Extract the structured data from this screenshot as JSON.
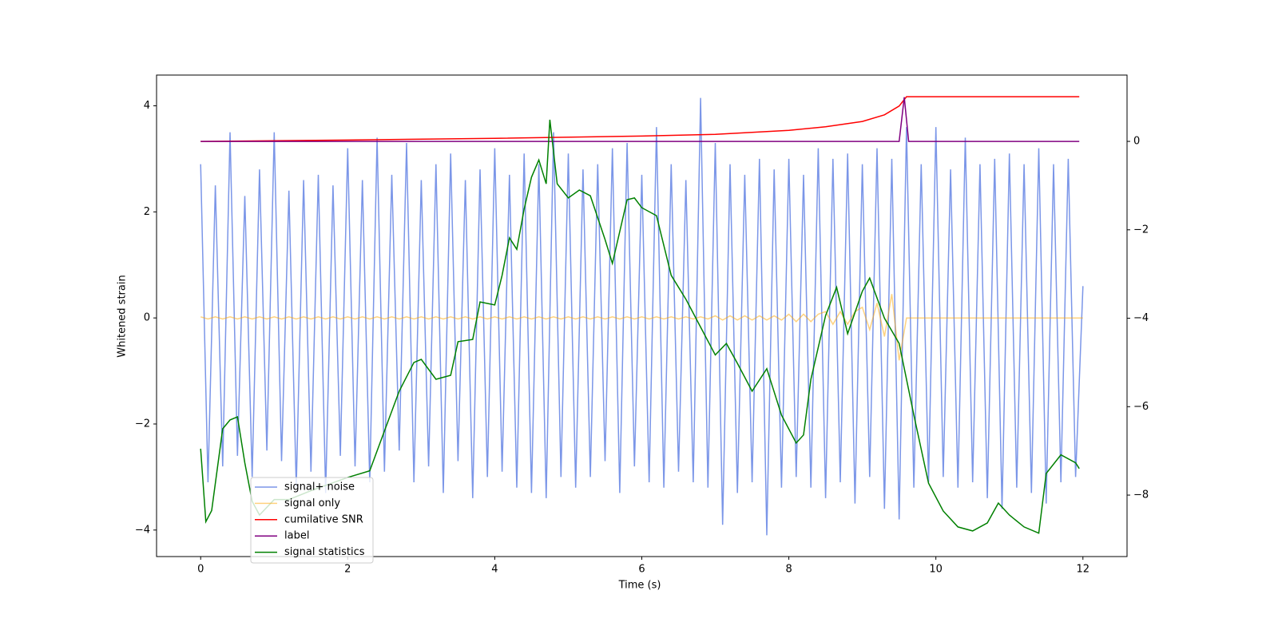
{
  "chart_data": {
    "type": "line",
    "xlabel": "Time (s)",
    "ylabel": "Whitened strain",
    "xlim": [
      -0.6,
      12.6
    ],
    "xticks": [
      0,
      2,
      4,
      6,
      8,
      10,
      12
    ],
    "ylim": [
      -4.5,
      4.58
    ],
    "yticks": [
      {
        "value": -4,
        "label": "−4"
      },
      {
        "value": -2,
        "label": "−2"
      },
      0,
      2,
      4
    ],
    "y2lim": [
      -9.39,
      1.5
    ],
    "y2ticks": [
      {
        "value": -8,
        "label": "−8"
      },
      {
        "value": -6,
        "label": "−6"
      },
      {
        "value": -4,
        "label": "−4"
      },
      {
        "value": -2,
        "label": "−2"
      },
      0
    ],
    "x": [
      0,
      0.1,
      0.2,
      0.3,
      0.4,
      0.5,
      0.6,
      0.7,
      0.8,
      0.9,
      1.0,
      1.1,
      1.2,
      1.3,
      1.4,
      1.5,
      1.6,
      1.7,
      1.8,
      1.9,
      2.0,
      2.1,
      2.2,
      2.3,
      2.4,
      2.5,
      2.6,
      2.7,
      2.8,
      2.9,
      3.0,
      3.1,
      3.2,
      3.3,
      3.4,
      3.5,
      3.6,
      3.7,
      3.8,
      3.9,
      4.0,
      4.1,
      4.2,
      4.3,
      4.4,
      4.5,
      4.6,
      4.7,
      4.8,
      4.9,
      5.0,
      5.1,
      5.2,
      5.3,
      5.4,
      5.5,
      5.6,
      5.7,
      5.8,
      5.9,
      6.0,
      6.1,
      6.2,
      6.3,
      6.4,
      6.5,
      6.6,
      6.7,
      6.8,
      6.9,
      7.0,
      7.1,
      7.2,
      7.3,
      7.4,
      7.5,
      7.6,
      7.7,
      7.8,
      7.9,
      8.0,
      8.1,
      8.2,
      8.3,
      8.4,
      8.5,
      8.6,
      8.7,
      8.8,
      8.9,
      9.0,
      9.1,
      9.2,
      9.3,
      9.4,
      9.5,
      9.6,
      9.7,
      9.8,
      9.9,
      10.0,
      10.1,
      10.2,
      10.3,
      10.4,
      10.5,
      10.6,
      10.7,
      10.8,
      10.9,
      11.0,
      11.1,
      11.2,
      11.3,
      11.4,
      11.5,
      11.6,
      11.7,
      11.8,
      11.9,
      12.0
    ],
    "series": [
      {
        "name": "signal+ noise",
        "color": "#7b96e8",
        "values": [
          2.9,
          -3.1,
          2.5,
          -2.8,
          3.5,
          -2.6,
          2.3,
          -3.0,
          2.8,
          -2.5,
          3.5,
          -2.7,
          2.4,
          -3.2,
          2.6,
          -2.9,
          2.7,
          -3.3,
          2.5,
          -2.6,
          3.2,
          -2.8,
          2.6,
          -3.1,
          3.4,
          -2.9,
          2.7,
          -2.5,
          3.3,
          -3.1,
          2.6,
          -2.8,
          2.9,
          -3.3,
          3.1,
          -2.7,
          2.6,
          -3.4,
          2.8,
          -3.0,
          3.2,
          -2.9,
          2.7,
          -3.2,
          3.1,
          -3.3,
          2.9,
          -3.4,
          3.5,
          -3.0,
          3.1,
          -3.2,
          2.8,
          -3.0,
          2.9,
          -2.7,
          3.2,
          -3.3,
          3.3,
          -2.8,
          2.7,
          -3.1,
          3.6,
          -3.2,
          2.9,
          -2.9,
          2.6,
          -3.1,
          4.15,
          -3.2,
          3.3,
          -3.9,
          2.9,
          -3.3,
          2.7,
          -3.1,
          3.0,
          -4.1,
          2.8,
          -3.2,
          3.0,
          -3.0,
          2.7,
          -3.2,
          3.2,
          -3.4,
          3.0,
          -3.1,
          3.1,
          -3.5,
          2.9,
          -3.0,
          3.2,
          -3.6,
          3.0,
          -3.8,
          3.6,
          -3.2,
          2.9,
          -3.1,
          3.6,
          -3.0,
          2.8,
          -3.2,
          3.4,
          -3.1,
          2.9,
          -3.4,
          3.0,
          -3.6,
          3.1,
          -3.2,
          2.9,
          -3.3,
          3.2,
          -3.5,
          2.9,
          -3.1,
          3.0,
          -3.0,
          0.6
        ]
      },
      {
        "name": "signal only",
        "color": "#ffa500",
        "alpha": 0.5,
        "values": [
          0.02,
          -0.02,
          0.02,
          -0.02,
          0.02,
          -0.02,
          0.02,
          -0.02,
          0.02,
          -0.02,
          0.02,
          -0.02,
          0.02,
          -0.02,
          0.02,
          -0.02,
          0.02,
          -0.02,
          0.02,
          -0.02,
          0.02,
          -0.02,
          0.02,
          -0.02,
          0.02,
          -0.02,
          0.02,
          -0.02,
          0.02,
          -0.02,
          0.02,
          -0.02,
          0.02,
          -0.02,
          0.02,
          -0.02,
          0.02,
          -0.02,
          0.02,
          -0.02,
          0.02,
          -0.02,
          0.02,
          -0.02,
          0.02,
          -0.02,
          0.02,
          -0.02,
          0.02,
          -0.02,
          0.02,
          -0.02,
          0.02,
          -0.02,
          0.02,
          -0.02,
          0.02,
          -0.02,
          0.02,
          -0.02,
          0.02,
          -0.02,
          0.02,
          -0.02,
          0.02,
          -0.02,
          0.02,
          -0.02,
          0.02,
          -0.02,
          0.04,
          -0.04,
          0.04,
          -0.04,
          0.04,
          -0.04,
          0.04,
          -0.04,
          0.04,
          -0.04,
          0.07,
          -0.07,
          0.07,
          -0.07,
          0.07,
          0.12,
          -0.12,
          0.12,
          -0.12,
          0.12,
          0.2,
          -0.22,
          0.28,
          -0.35,
          0.45,
          -0.8,
          0,
          0,
          0,
          0,
          0,
          0,
          0,
          0,
          0,
          0,
          0,
          0,
          0,
          0,
          0,
          0,
          0,
          0,
          0,
          0,
          0,
          0,
          0,
          0,
          0
        ]
      },
      {
        "name": "cumilative SNR",
        "color": "#ff0000",
        "axis": "y2",
        "x": [
          0,
          2,
          4,
          6,
          7,
          8,
          8.5,
          9,
          9.3,
          9.5,
          9.6,
          9.61,
          11.95
        ],
        "values": [
          0,
          0.03,
          0.07,
          0.12,
          0.16,
          0.25,
          0.33,
          0.45,
          0.6,
          0.8,
          1.01,
          1.01,
          1.01
        ]
      },
      {
        "name": "label",
        "color": "#800080",
        "axis": "y2",
        "x": [
          0,
          9.5,
          9.57,
          9.63,
          11.95
        ],
        "values": [
          0,
          0,
          1,
          0,
          0
        ]
      },
      {
        "name": "signal statistics",
        "color": "#008000",
        "axis": "y2",
        "x": [
          0,
          0.07,
          0.15,
          0.3,
          0.4,
          0.5,
          0.6,
          0.7,
          0.8,
          1.0,
          1.2,
          1.5,
          2.0,
          2.3,
          2.5,
          2.7,
          2.9,
          3.0,
          3.2,
          3.4,
          3.5,
          3.7,
          3.8,
          4.0,
          4.1,
          4.2,
          4.3,
          4.4,
          4.5,
          4.6,
          4.7,
          4.75,
          4.85,
          5.0,
          5.15,
          5.3,
          5.5,
          5.6,
          5.8,
          5.9,
          6.0,
          6.2,
          6.4,
          6.6,
          6.8,
          7.0,
          7.15,
          7.3,
          7.5,
          7.7,
          7.9,
          8.1,
          8.2,
          8.3,
          8.5,
          8.65,
          8.8,
          9.0,
          9.1,
          9.3,
          9.5,
          9.7,
          9.9,
          10.1,
          10.3,
          10.5,
          10.7,
          10.85,
          11.0,
          11.2,
          11.4,
          11.5,
          11.7,
          11.9,
          11.95
        ],
        "values": [
          -6.95,
          -8.6,
          -8.35,
          -6.5,
          -6.3,
          -6.23,
          -7.27,
          -8.14,
          -8.45,
          -8.1,
          -8.1,
          -7.9,
          -7.6,
          -7.45,
          -6.55,
          -5.65,
          -5.0,
          -4.93,
          -5.38,
          -5.29,
          -4.53,
          -4.48,
          -3.63,
          -3.7,
          -3.03,
          -2.18,
          -2.44,
          -1.53,
          -0.81,
          -0.42,
          -0.96,
          0.49,
          -0.96,
          -1.28,
          -1.1,
          -1.23,
          -2.22,
          -2.76,
          -1.32,
          -1.28,
          -1.5,
          -1.68,
          -3.03,
          -3.57,
          -4.2,
          -4.83,
          -4.57,
          -5.02,
          -5.65,
          -5.14,
          -6.19,
          -6.82,
          -6.64,
          -5.38,
          -3.94,
          -3.3,
          -4.35,
          -3.39,
          -3.09,
          -4.0,
          -4.57,
          -6.19,
          -7.73,
          -8.36,
          -8.72,
          -8.81,
          -8.63,
          -8.18,
          -8.45,
          -8.72,
          -8.86,
          -7.51,
          -7.09,
          -7.27,
          -7.4
        ]
      }
    ]
  }
}
